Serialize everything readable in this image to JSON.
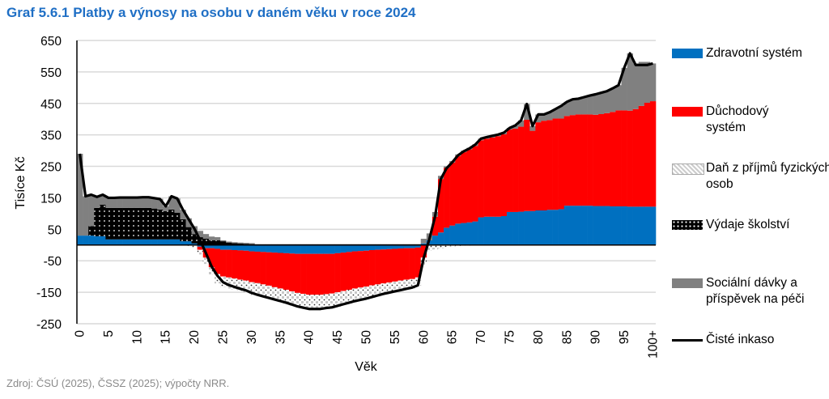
{
  "title": "Graf 5.6.1 Platby a výnosy na osobu v daném věku v roce 2024",
  "source": "Zdroj: ČSÚ (2025), ČSSZ (2025); výpočty NRR.",
  "chart_data": {
    "type": "area",
    "stacked": true,
    "title": "Graf 5.6.1 Platby a výnosy na osobu v daném věku v roce 2024",
    "xlabel": "Věk",
    "ylabel": "Tisíce Kč",
    "ylim": [
      -250,
      650
    ],
    "yticks": [
      650,
      550,
      450,
      350,
      250,
      150,
      50,
      -50,
      -150,
      -250
    ],
    "xticks": [
      {
        "age": 0,
        "label": "0"
      },
      {
        "age": 5,
        "label": "5"
      },
      {
        "age": 10,
        "label": "10"
      },
      {
        "age": 15,
        "label": "15"
      },
      {
        "age": 20,
        "label": "20"
      },
      {
        "age": 25,
        "label": "25"
      },
      {
        "age": 30,
        "label": "30"
      },
      {
        "age": 35,
        "label": "35"
      },
      {
        "age": 40,
        "label": "40"
      },
      {
        "age": 45,
        "label": "45"
      },
      {
        "age": 50,
        "label": "50"
      },
      {
        "age": 55,
        "label": "55"
      },
      {
        "age": 60,
        "label": "60"
      },
      {
        "age": 65,
        "label": "65"
      },
      {
        "age": 70,
        "label": "70"
      },
      {
        "age": 75,
        "label": "75"
      },
      {
        "age": 80,
        "label": "80"
      },
      {
        "age": 85,
        "label": "85"
      },
      {
        "age": 90,
        "label": "90"
      },
      {
        "age": 95,
        "label": "95"
      },
      {
        "age": 100,
        "label": "100+"
      }
    ],
    "grid": true,
    "legend": "right",
    "age_from": 0,
    "age_to": 100,
    "series": [
      {
        "name": "Zdravotní systém",
        "color": "#0070C0",
        "fill": "solid",
        "values": [
          30,
          30,
          30,
          28,
          28,
          18,
          18,
          18,
          18,
          18,
          18,
          18,
          18,
          18,
          18,
          18,
          18,
          18,
          12,
          12,
          5,
          -5,
          -10,
          -10,
          -12,
          -15,
          -15,
          -16,
          -17,
          -18,
          -20,
          -21,
          -22,
          -23,
          -24,
          -25,
          -26,
          -27,
          -28,
          -28,
          -28,
          -28,
          -28,
          -28,
          -28,
          -26,
          -24,
          -22,
          -20,
          -19,
          -18,
          -16,
          -15,
          -14,
          -13,
          -12,
          -11,
          -10,
          -10,
          -8,
          5,
          15,
          30,
          40,
          55,
          62,
          68,
          70,
          72,
          75,
          88,
          90,
          90,
          90,
          92,
          105,
          105,
          106,
          108,
          108,
          110,
          110,
          112,
          112,
          114,
          125,
          125,
          125,
          125,
          125,
          124,
          124,
          124,
          123,
          123,
          123,
          122,
          122,
          122,
          122,
          122
        ]
      },
      {
        "name": "Důchodový systém",
        "color": "#FF0000",
        "fill": "solid",
        "values": [
          0,
          0,
          0,
          0,
          0,
          0,
          0,
          0,
          0,
          0,
          0,
          0,
          0,
          0,
          0,
          0,
          0,
          0,
          0,
          0,
          0,
          -10,
          -30,
          -60,
          -80,
          -85,
          -88,
          -90,
          -93,
          -95,
          -98,
          -100,
          -103,
          -106,
          -110,
          -113,
          -116,
          -120,
          -124,
          -127,
          -130,
          -130,
          -130,
          -128,
          -126,
          -124,
          -122,
          -120,
          -118,
          -116,
          -114,
          -112,
          -110,
          -108,
          -106,
          -104,
          -102,
          -100,
          -98,
          -95,
          -40,
          0,
          60,
          170,
          190,
          200,
          215,
          225,
          232,
          240,
          245,
          248,
          252,
          256,
          260,
          262,
          265,
          270,
          290,
          255,
          280,
          285,
          285,
          290,
          288,
          285,
          288,
          290,
          290,
          290,
          290,
          292,
          295,
          300,
          305,
          305,
          305,
          310,
          320,
          330,
          335
        ]
      },
      {
        "name": "Daň z příjmů fyzických osob",
        "color": "#FFFFFF",
        "fill": "dotted-light",
        "values": [
          0,
          0,
          0,
          0,
          0,
          0,
          0,
          0,
          0,
          0,
          0,
          0,
          0,
          0,
          0,
          0,
          0,
          0,
          0,
          -3,
          -8,
          -15,
          -20,
          -25,
          -30,
          -33,
          -35,
          -36,
          -37,
          -38,
          -40,
          -40,
          -41,
          -42,
          -42,
          -43,
          -44,
          -45,
          -46,
          -47,
          -48,
          -48,
          -48,
          -47,
          -47,
          -46,
          -45,
          -44,
          -43,
          -42,
          -41,
          -40,
          -38,
          -36,
          -35,
          -34,
          -33,
          -32,
          -30,
          -28,
          -22,
          -18,
          -14,
          -10,
          -6,
          -4,
          -3,
          -2,
          -2,
          -1,
          0,
          0,
          0,
          0,
          0,
          0,
          0,
          0,
          0,
          0,
          0,
          0,
          0,
          0,
          0,
          0,
          0,
          0,
          0,
          0,
          0,
          0,
          0,
          0,
          0,
          0,
          0,
          0,
          0,
          0,
          0
        ]
      },
      {
        "name": "Výdaje školství",
        "color": "#000000",
        "fill": "dotted-dark",
        "values": [
          0,
          0,
          30,
          90,
          100,
          100,
          100,
          100,
          100,
          100,
          100,
          100,
          100,
          98,
          95,
          90,
          95,
          85,
          70,
          45,
          30,
          25,
          20,
          15,
          15,
          12,
          8,
          6,
          5,
          4,
          3,
          0,
          0,
          0,
          0,
          0,
          0,
          0,
          0,
          0,
          0,
          0,
          0,
          0,
          0,
          0,
          0,
          0,
          0,
          0,
          0,
          0,
          0,
          0,
          0,
          0,
          0,
          0,
          0,
          0,
          0,
          0,
          0,
          0,
          0,
          0,
          0,
          0,
          0,
          0,
          0,
          0,
          0,
          0,
          0,
          0,
          0,
          0,
          0,
          0,
          0,
          0,
          0,
          0,
          0,
          0,
          0,
          0,
          0,
          0,
          0,
          0,
          0,
          0,
          0,
          0,
          0,
          0,
          0,
          0,
          0
        ]
      },
      {
        "name": "Sociální dávky a příspěvek na péči",
        "color": "#808080",
        "fill": "solid",
        "values": [
          260,
          125,
          100,
          35,
          32,
          32,
          33,
          33,
          33,
          33,
          34,
          34,
          33,
          33,
          34,
          15,
          42,
          45,
          30,
          28,
          25,
          20,
          15,
          12,
          10,
          3,
          3,
          3,
          3,
          3,
          3,
          3,
          3,
          3,
          3,
          3,
          3,
          3,
          3,
          3,
          3,
          3,
          3,
          3,
          3,
          3,
          3,
          3,
          3,
          3,
          3,
          3,
          3,
          3,
          3,
          3,
          3,
          3,
          3,
          3,
          15,
          22,
          15,
          10,
          5,
          5,
          5,
          5,
          5,
          5,
          5,
          5,
          5,
          5,
          5,
          5,
          10,
          20,
          50,
          15,
          25,
          20,
          25,
          30,
          40,
          45,
          50,
          50,
          55,
          60,
          65,
          68,
          70,
          75,
          80,
          135,
          182,
          145,
          140,
          130,
          120
        ]
      },
      {
        "name": "Čisté inkaso",
        "color": "#000000",
        "type": "line",
        "values": [
          290,
          155,
          160,
          153,
          160,
          150,
          150,
          151,
          151,
          151,
          151,
          152,
          152,
          149,
          146,
          123,
          155,
          148,
          112,
          82,
          52,
          15,
          -25,
          -68,
          -97,
          -118,
          -127,
          -133,
          -139,
          -144,
          -152,
          -158,
          -163,
          -168,
          -173,
          -178,
          -183,
          -189,
          -195,
          -199,
          -203,
          -203,
          -203,
          -200,
          -198,
          -193,
          -188,
          -183,
          -178,
          -174,
          -170,
          -165,
          -160,
          -155,
          -151,
          -147,
          -143,
          -139,
          -135,
          -128,
          -42,
          19,
          91,
          210,
          244,
          263,
          285,
          298,
          307,
          319,
          338,
          343,
          347,
          351,
          357,
          372,
          380,
          396,
          448,
          378,
          415,
          415,
          422,
          432,
          442,
          455,
          463,
          465,
          470,
          475,
          479,
          484,
          489,
          498,
          508,
          563,
          609,
          572,
          572,
          572,
          577
        ]
      }
    ]
  }
}
